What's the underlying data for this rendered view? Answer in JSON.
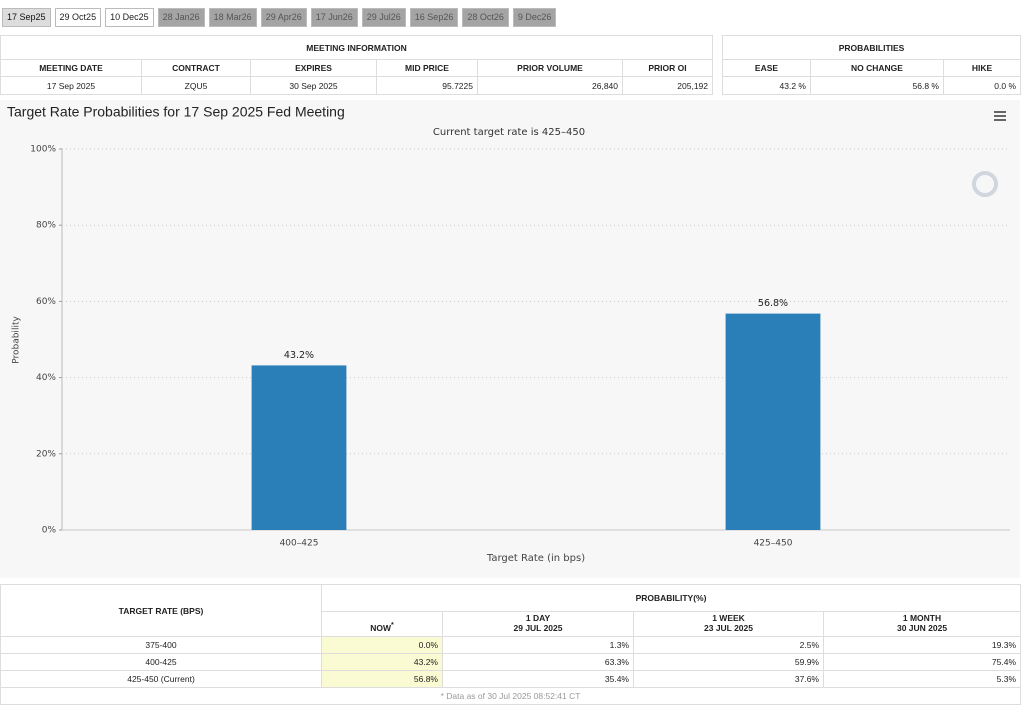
{
  "tabs": [
    "17 Sep25",
    "29 Oct25",
    "10 Dec25",
    "28 Jan26",
    "18 Mar26",
    "29 Apr26",
    "17 Jun26",
    "29 Jul26",
    "16 Sep26",
    "28 Oct26",
    "9 Dec26"
  ],
  "meeting_info": {
    "title": "MEETING INFORMATION",
    "headers": [
      "MEETING DATE",
      "CONTRACT",
      "EXPIRES",
      "MID PRICE",
      "PRIOR VOLUME",
      "PRIOR OI"
    ],
    "row": [
      "17 Sep 2025",
      "ZQU5",
      "30 Sep 2025",
      "95.7225",
      "26,840",
      "205,192"
    ]
  },
  "probabilities": {
    "title": "PROBABILITIES",
    "headers": [
      "EASE",
      "NO CHANGE",
      "HIKE"
    ],
    "row": [
      "43.2 %",
      "56.8 %",
      "0.0 %"
    ]
  },
  "chart_data": {
    "type": "bar",
    "title": "Target Rate Probabilities for 17 Sep 2025 Fed Meeting",
    "subtitle": "Current target rate is 425–450",
    "x_label": "Target Rate (in bps)",
    "y_label": "Probability",
    "categories": [
      "400–425",
      "425–450"
    ],
    "values": [
      43.2,
      56.8
    ],
    "value_labels": [
      "43.2%",
      "56.8%"
    ],
    "color": "#2b7fb9",
    "ylim": [
      0,
      100
    ],
    "yticks": [
      {
        "value": 0,
        "label": "0%"
      },
      {
        "value": 20,
        "label": "20%"
      },
      {
        "value": 40,
        "label": "40%"
      },
      {
        "value": 60,
        "label": "60%"
      },
      {
        "value": 80,
        "label": "80%"
      },
      {
        "value": 100,
        "label": "100%"
      }
    ],
    "grid": true
  },
  "rate_table": {
    "header": "TARGET RATE (BPS)",
    "group": "PROBABILITY(%)",
    "columns": [
      {
        "title": "NOW",
        "marker": "*"
      },
      {
        "title": "1 DAY",
        "date": "29 JUL 2025"
      },
      {
        "title": "1 WEEK",
        "date": "23 JUL 2025"
      },
      {
        "title": "1 MONTH",
        "date": "30 JUN 2025"
      }
    ],
    "rows": [
      [
        "375-400",
        "0.0%",
        "1.3%",
        "2.5%",
        "19.3%"
      ],
      [
        "400-425",
        "43.2%",
        "63.3%",
        "59.9%",
        "75.4%"
      ],
      [
        "425-450 (Current)",
        "56.8%",
        "35.4%",
        "37.6%",
        "5.3%"
      ]
    ],
    "footnote": "* Data as of 30 Jul 2025 08:52:41 CT"
  }
}
